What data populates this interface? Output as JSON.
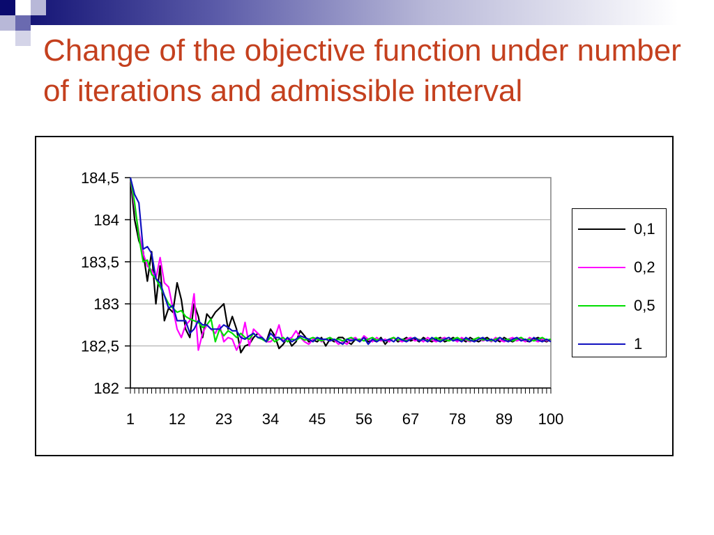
{
  "slide": {
    "title": "Change of the objective function under number of iterations and admissible interval",
    "colors": {
      "title": "#c4401e",
      "band_dark": "#0a0a6e"
    }
  },
  "chart_data": {
    "type": "line",
    "title": "",
    "xlabel": "",
    "ylabel": "",
    "x_range": [
      1,
      100
    ],
    "ylim": [
      182,
      184.5
    ],
    "y_ticks": [
      "182",
      "182,5",
      "183",
      "183,5",
      "184",
      "184,5"
    ],
    "y_tick_values": [
      182,
      182.5,
      183,
      183.5,
      184,
      184.5
    ],
    "x_ticks": [
      "1",
      "12",
      "23",
      "34",
      "45",
      "56",
      "67",
      "78",
      "89",
      "100"
    ],
    "x_tick_values": [
      1,
      12,
      23,
      34,
      45,
      56,
      67,
      78,
      89,
      100
    ],
    "grid": "horizontal",
    "legend_position": "right",
    "series": [
      {
        "name": "0,1",
        "color": "#000000",
        "values": [
          184.5,
          184.0,
          183.75,
          183.62,
          183.27,
          183.62,
          183.0,
          183.45,
          182.8,
          182.95,
          182.9,
          183.25,
          183.05,
          182.7,
          182.6,
          183.0,
          182.85,
          182.6,
          182.88,
          182.82,
          182.9,
          182.95,
          183.0,
          182.7,
          182.85,
          182.7,
          182.42,
          182.5,
          182.52,
          182.6,
          182.65,
          182.6,
          182.55,
          182.7,
          182.62,
          182.47,
          182.52,
          182.6,
          182.5,
          182.55,
          182.68,
          182.62,
          182.55,
          182.57,
          182.55,
          182.6,
          182.5,
          182.58,
          182.55,
          182.6,
          182.6,
          182.55,
          182.52,
          182.58,
          182.56,
          182.6,
          182.55,
          182.57,
          182.55,
          182.6,
          182.52,
          182.58,
          182.6,
          182.55,
          182.57,
          182.6,
          182.56,
          182.58,
          182.55,
          182.6,
          182.57,
          182.55,
          182.58,
          182.6,
          182.55,
          182.57,
          182.6,
          182.56,
          182.58,
          182.55,
          182.6,
          182.57,
          182.55,
          182.58,
          182.6,
          182.56,
          182.58,
          182.55,
          182.6,
          182.57,
          182.55,
          182.58,
          182.6,
          182.56,
          182.55,
          182.58,
          182.6,
          182.57,
          182.55,
          182.58
        ]
      },
      {
        "name": "0,2",
        "color": "#ff00ff",
        "values": [
          184.5,
          184.15,
          183.85,
          183.6,
          183.45,
          183.4,
          183.3,
          183.55,
          183.25,
          183.2,
          182.95,
          182.7,
          182.6,
          182.75,
          182.8,
          183.12,
          182.45,
          182.65,
          182.75,
          182.7,
          182.65,
          182.75,
          182.55,
          182.6,
          182.58,
          182.45,
          182.55,
          182.78,
          182.5,
          182.7,
          182.65,
          182.6,
          182.55,
          182.55,
          182.6,
          182.75,
          182.55,
          182.58,
          182.6,
          182.68,
          182.6,
          182.55,
          182.52,
          182.58,
          182.6,
          182.55,
          182.58,
          182.6,
          182.57,
          182.52,
          182.55,
          182.52,
          182.58,
          182.6,
          182.55,
          182.62,
          182.58,
          182.55,
          182.6,
          182.56,
          182.58,
          182.55,
          182.6,
          182.57,
          182.55,
          182.58,
          182.6,
          182.56,
          182.58,
          182.55,
          182.6,
          182.57,
          182.55,
          182.58,
          182.6,
          182.56,
          182.58,
          182.55,
          182.6,
          182.57,
          182.55,
          182.58,
          182.6,
          182.56,
          182.58,
          182.55,
          182.6,
          182.57,
          182.55,
          182.58,
          182.6,
          182.56,
          182.58,
          182.55,
          182.6,
          182.57,
          182.55,
          182.58,
          182.56,
          182.58
        ]
      },
      {
        "name": "0,5",
        "color": "#00dd00",
        "values": [
          184.5,
          184.2,
          183.8,
          183.5,
          183.52,
          183.35,
          183.3,
          183.2,
          183.1,
          183.0,
          182.95,
          182.9,
          182.92,
          182.85,
          182.82,
          182.8,
          182.78,
          182.72,
          182.75,
          182.82,
          182.55,
          182.7,
          182.62,
          182.68,
          182.65,
          182.6,
          182.65,
          182.6,
          182.58,
          182.65,
          182.6,
          182.58,
          182.55,
          182.6,
          182.55,
          182.58,
          182.6,
          182.55,
          182.58,
          182.57,
          182.6,
          182.57,
          182.58,
          182.6,
          182.58,
          182.56,
          182.58,
          182.6,
          182.57,
          182.58,
          182.56,
          182.58,
          182.6,
          182.57,
          182.58,
          182.56,
          182.58,
          182.6,
          182.57,
          182.58,
          182.56,
          182.58,
          182.6,
          182.57,
          182.58,
          182.56,
          182.58,
          182.6,
          182.57,
          182.58,
          182.56,
          182.58,
          182.6,
          182.57,
          182.58,
          182.56,
          182.58,
          182.6,
          182.57,
          182.58,
          182.56,
          182.58,
          182.6,
          182.57,
          182.58,
          182.56,
          182.58,
          182.6,
          182.57,
          182.58,
          182.56,
          182.58,
          182.6,
          182.57,
          182.58,
          182.56,
          182.58,
          182.6,
          182.57,
          182.58
        ]
      },
      {
        "name": "1",
        "color": "#1010c0",
        "values": [
          184.5,
          184.3,
          184.2,
          183.65,
          183.68,
          183.6,
          183.3,
          183.25,
          183.1,
          182.95,
          182.98,
          182.8,
          182.8,
          182.8,
          182.65,
          182.7,
          182.8,
          182.75,
          182.75,
          182.7,
          182.7,
          182.7,
          182.75,
          182.72,
          182.68,
          182.68,
          182.6,
          182.58,
          182.62,
          182.65,
          182.6,
          182.6,
          182.55,
          182.65,
          182.6,
          182.6,
          182.55,
          182.6,
          182.55,
          182.58,
          182.62,
          182.6,
          182.58,
          182.55,
          182.6,
          182.58,
          182.58,
          182.56,
          182.58,
          182.55,
          182.52,
          182.58,
          182.56,
          182.58,
          182.55,
          182.6,
          182.52,
          182.58,
          182.55,
          182.58,
          182.56,
          182.58,
          182.55,
          182.6,
          182.57,
          182.55,
          182.58,
          182.6,
          182.56,
          182.58,
          182.55,
          182.6,
          182.57,
          182.55,
          182.58,
          182.6,
          182.56,
          182.58,
          182.55,
          182.6,
          182.57,
          182.55,
          182.58,
          182.6,
          182.56,
          182.58,
          182.55,
          182.6,
          182.57,
          182.55,
          182.58,
          182.6,
          182.56,
          182.58,
          182.55,
          182.6,
          182.57,
          182.55,
          182.58,
          182.55
        ]
      }
    ]
  }
}
